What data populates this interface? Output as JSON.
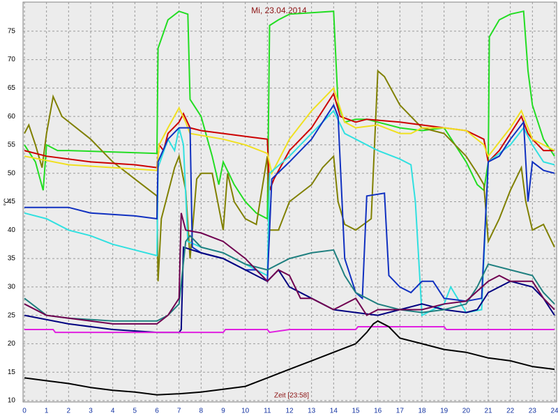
{
  "chart_data": {
    "type": "line",
    "title": "Mi, 23.04.2014",
    "xlabel": "Zeit [23:58]",
    "ylabel": "°C",
    "xlim": [
      0,
      24
    ],
    "xticks": [
      0,
      1,
      2,
      3,
      4,
      5,
      6,
      7,
      8,
      9,
      10,
      11,
      12,
      13,
      14,
      15,
      16,
      17,
      18,
      19,
      20,
      21,
      22,
      23,
      24
    ],
    "ylim": [
      10,
      80
    ],
    "yticks": [
      10,
      15,
      20,
      25,
      30,
      35,
      40,
      45,
      50,
      55,
      60,
      65,
      70,
      75
    ],
    "grid": true,
    "series": [
      {
        "color": "#22dd22",
        "x": [
          0,
          0.5,
          0.85,
          1,
          1.5,
          2,
          6,
          6.05,
          6.5,
          7,
          7.4,
          7.5,
          8,
          8.5,
          8.8,
          9,
          9.5,
          10,
          10.5,
          11,
          11.1,
          11.5,
          12,
          14,
          14.2,
          14.5,
          15,
          15.5,
          16,
          17,
          18,
          19,
          20,
          20.5,
          20.8,
          21,
          21.05,
          21.5,
          22,
          22.6,
          22.8,
          23,
          23.5,
          24
        ],
        "values": [
          55,
          52,
          47,
          55,
          54,
          54,
          53.5,
          72,
          77,
          78.5,
          78,
          63,
          60,
          53,
          48,
          52,
          48,
          45,
          43,
          42,
          76,
          77,
          78,
          78.5,
          62,
          59,
          59.5,
          59.5,
          59,
          58,
          57.5,
          58,
          52,
          48,
          47,
          52,
          74,
          77,
          78,
          78.5,
          68,
          62,
          56,
          53
        ]
      },
      {
        "color": "#808000",
        "x": [
          0,
          0.2,
          0.5,
          0.8,
          1,
          1.3,
          1.7,
          3,
          4,
          5,
          6,
          6.05,
          6.2,
          6.8,
          7,
          7.3,
          7.5,
          7.8,
          8,
          8.5,
          9,
          9.2,
          9.5,
          10,
          10.5,
          11,
          11.1,
          11.5,
          12,
          13,
          13.5,
          14,
          14.2,
          14.5,
          15,
          15.7,
          16,
          16.3,
          17,
          18,
          19,
          20,
          20.5,
          20.8,
          21,
          21.5,
          22,
          22.5,
          22.7,
          23,
          23.5,
          24
        ],
        "values": [
          57,
          58.5,
          55,
          51,
          57,
          63.5,
          60,
          56,
          52,
          49,
          46,
          31,
          42,
          51,
          53,
          47,
          35,
          49,
          50,
          50,
          40,
          50,
          45,
          42,
          41,
          53,
          40,
          40,
          45,
          48,
          51,
          53,
          45,
          41,
          40,
          42,
          68,
          67,
          62,
          58,
          57,
          53,
          50,
          48,
          38,
          42,
          47,
          51,
          45,
          40,
          41,
          37
        ]
      },
      {
        "color": "#cc0000",
        "x": [
          0,
          1,
          3,
          5,
          6,
          6.1,
          6.3,
          6.5,
          7,
          7.2,
          7.5,
          8,
          9,
          10,
          11,
          11.1,
          11.3,
          12,
          13,
          14,
          14.3,
          15,
          15.5,
          17,
          18,
          19,
          20,
          20.8,
          21,
          21.5,
          22,
          22.5,
          22.8,
          23,
          23.5,
          24
        ],
        "values": [
          54,
          53,
          52,
          51.5,
          51,
          55,
          54,
          57,
          59,
          60.5,
          58,
          57.5,
          57,
          56.5,
          56,
          47,
          49,
          54,
          58,
          64,
          60,
          59,
          59.5,
          59,
          58.5,
          58,
          57.5,
          56,
          52,
          54,
          57,
          60,
          57,
          56,
          54,
          54
        ]
      },
      {
        "color": "#f0e020",
        "x": [
          0,
          2,
          4,
          6,
          6.1,
          6.5,
          7,
          7.3,
          7.5,
          9,
          10,
          11,
          11.2,
          12,
          13,
          14,
          14.5,
          15,
          16,
          17,
          17.5,
          18,
          19,
          20,
          20.8,
          21,
          22,
          22.5,
          23,
          23.5,
          24
        ],
        "values": [
          53,
          51.5,
          51,
          50.5,
          55,
          58,
          61.5,
          59,
          57,
          56,
          55,
          53.5,
          50,
          56,
          61,
          65,
          59,
          58,
          58.5,
          57,
          57,
          58,
          58,
          57.5,
          55,
          53,
          58,
          61,
          56,
          55,
          54
        ]
      },
      {
        "color": "#30e0e0",
        "x": [
          0,
          1,
          2,
          3,
          4,
          5,
          6,
          6.05,
          6.5,
          6.8,
          7,
          7.2,
          7.4,
          8,
          9,
          10,
          11,
          11.1,
          12,
          13,
          14,
          14.5,
          15,
          16,
          17,
          17.5,
          17.7,
          18,
          19,
          19.3,
          20,
          20.7,
          21,
          22,
          22.6,
          23,
          23.5,
          24
        ],
        "values": [
          43,
          42,
          40,
          39,
          37.5,
          36.5,
          35.5,
          51,
          56,
          54,
          58,
          55,
          38,
          37,
          36,
          34,
          32,
          50,
          53,
          57,
          61,
          57,
          56,
          54,
          52.5,
          51.5,
          45,
          25,
          27,
          30,
          25.5,
          26,
          52,
          55,
          58,
          55,
          52,
          51.5
        ]
      },
      {
        "color": "#1030c0",
        "x": [
          0,
          2,
          3,
          5,
          6,
          6.05,
          6.5,
          7,
          7.5,
          7.6,
          8,
          9,
          10,
          10.5,
          11,
          11.2,
          12,
          13,
          14,
          14.2,
          14.5,
          15,
          15.3,
          15.5,
          16.3,
          16.5,
          17,
          17.5,
          18,
          18.5,
          19,
          20,
          20.7,
          21,
          21.5,
          22,
          22.6,
          22.8,
          23,
          23.5,
          24
        ],
        "values": [
          44,
          44,
          43,
          42.5,
          42,
          52,
          56,
          58,
          58,
          37,
          36,
          35,
          33,
          33,
          31,
          49,
          52,
          56,
          62,
          60,
          35,
          29,
          28,
          46,
          46.5,
          32,
          30,
          29,
          31,
          31,
          28,
          27.5,
          28,
          52,
          53,
          56,
          59,
          45,
          52,
          50.5,
          50
        ]
      },
      {
        "color": "#000080",
        "x": [
          0,
          2,
          4,
          6,
          7,
          7.1,
          7.2,
          8,
          9,
          10,
          11,
          11.5,
          12,
          13,
          14,
          15,
          16,
          17,
          18,
          19,
          20,
          20.5,
          21,
          21.5,
          22,
          23,
          23.5,
          24
        ],
        "values": [
          25,
          23.5,
          22.5,
          22,
          22,
          22.5,
          37,
          36,
          35,
          33,
          31,
          33,
          30,
          28,
          26,
          25.5,
          25,
          26,
          27,
          26,
          25.5,
          26,
          29,
          30,
          31,
          30,
          28,
          25
        ]
      },
      {
        "color": "#208080",
        "x": [
          0,
          1,
          2,
          4,
          6,
          6.5,
          7,
          7.3,
          7.5,
          8,
          9,
          10,
          11,
          11.5,
          12,
          13,
          14,
          14.5,
          15,
          16,
          17,
          18,
          19,
          20,
          20.5,
          21,
          22,
          23,
          23.5,
          24
        ],
        "values": [
          28,
          25,
          24.5,
          24,
          24,
          25,
          27,
          38,
          39,
          37,
          36,
          34,
          33,
          34,
          35,
          36,
          36.5,
          32,
          29,
          27,
          26,
          25.5,
          26,
          27,
          30,
          34,
          33,
          32,
          29,
          27
        ]
      },
      {
        "color": "#700050",
        "x": [
          0,
          1,
          4,
          6,
          6.5,
          7,
          7.1,
          7.3,
          8,
          9,
          10,
          11,
          11.5,
          12,
          12.5,
          13,
          14,
          15,
          15.5,
          16,
          17,
          18,
          19,
          20,
          21,
          21.5,
          22,
          23,
          23.5,
          24
        ],
        "values": [
          27,
          25,
          23.5,
          23.5,
          25,
          28,
          43,
          40,
          39.5,
          38,
          35,
          31,
          33,
          32,
          28,
          28,
          26,
          28,
          25,
          26,
          26,
          26,
          27,
          27.5,
          31,
          32,
          31,
          31,
          28,
          26
        ]
      },
      {
        "color": "#e020e0",
        "x": [
          0,
          1.3,
          1.4,
          9,
          9.1,
          11,
          11.1,
          12,
          15,
          15.1,
          19,
          19.1,
          24
        ],
        "values": [
          22.5,
          22.5,
          22,
          22,
          22.5,
          22.5,
          22,
          22.5,
          22.5,
          23,
          23,
          22.5,
          22.5
        ]
      },
      {
        "color": "#000000",
        "x": [
          0,
          1,
          2,
          3,
          4,
          5,
          6,
          7,
          8,
          9,
          10,
          11,
          12,
          13,
          14,
          15,
          15.5,
          15.8,
          16,
          16.5,
          17,
          18,
          19,
          20,
          21,
          22,
          23,
          24
        ],
        "values": [
          14,
          13.5,
          13,
          12.3,
          11.8,
          11.5,
          11,
          11.2,
          11.5,
          12,
          12.5,
          14,
          15.5,
          17,
          18.5,
          20,
          22,
          23.5,
          24,
          23,
          21,
          20,
          19,
          18.5,
          17.5,
          17,
          16,
          15.5
        ]
      }
    ]
  }
}
